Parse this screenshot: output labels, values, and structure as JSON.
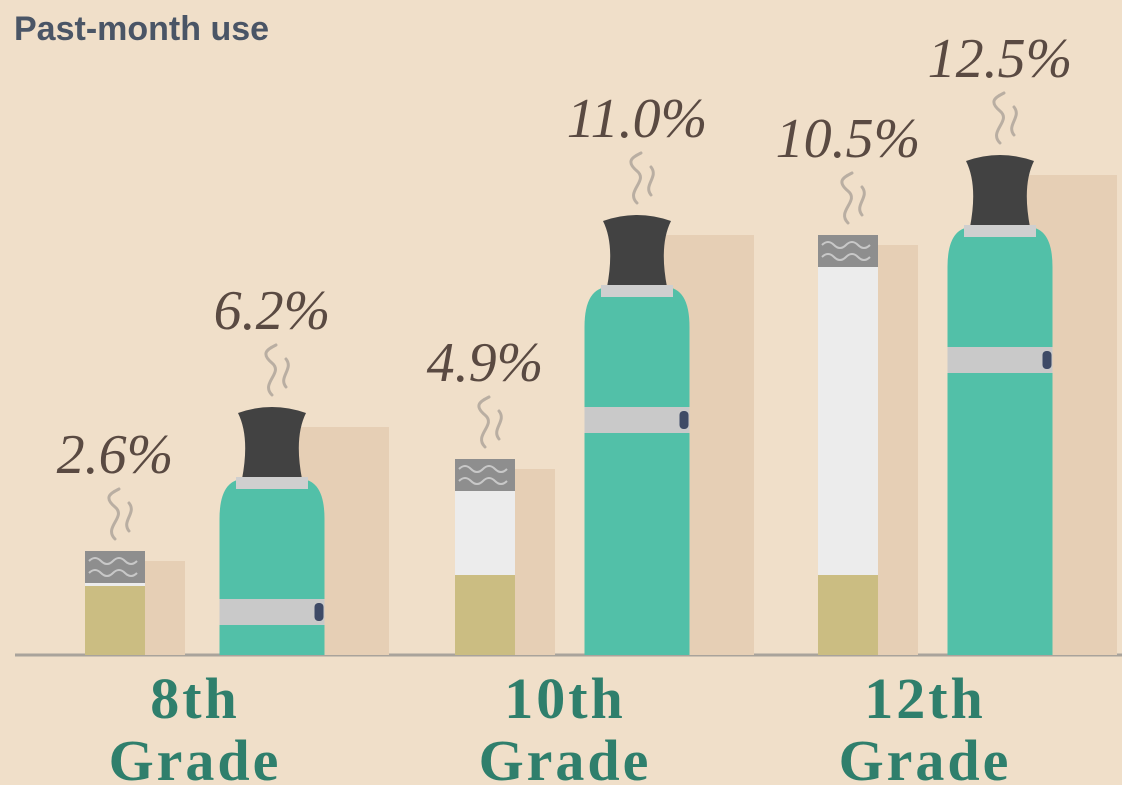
{
  "chart_data": {
    "type": "bar",
    "title": "Past-month use",
    "categories": [
      "8th Grade",
      "10th Grade",
      "12th Grade"
    ],
    "series": [
      {
        "color": "#ececec",
        "values": [
          2.6,
          4.9,
          10.5
        ],
        "value_labels": [
          "2.6%",
          "4.9%",
          "10.5%"
        ]
      },
      {
        "color": "#52c0a8",
        "values": [
          6.2,
          11.0,
          12.5
        ],
        "value_labels": [
          "6.2%",
          "11.0%",
          "12.5%"
        ]
      }
    ]
  }
}
